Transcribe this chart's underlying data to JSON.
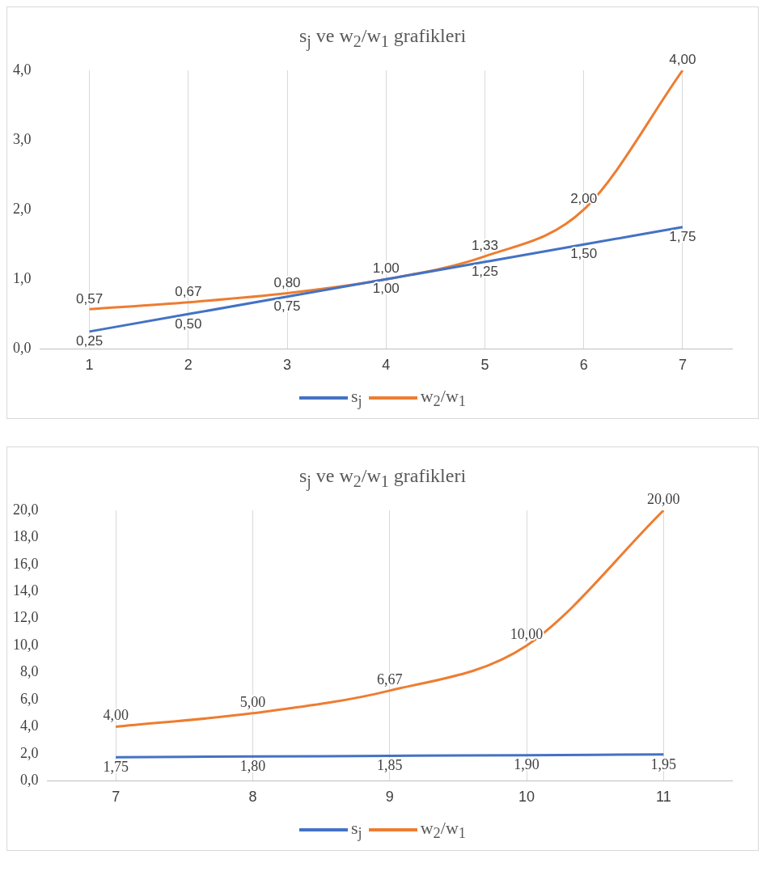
{
  "chart_data": [
    {
      "type": "line",
      "title": "s$_{j}$ ve w$_{2}$/w$_{1}$ grafikleri",
      "categories": [
        "1",
        "2",
        "3",
        "4",
        "5",
        "6",
        "7"
      ],
      "series": [
        {
          "name": "s$_{j}$",
          "color": "#4472c4",
          "values": [
            0.25,
            0.5,
            0.75,
            1.0,
            1.25,
            1.5,
            1.75
          ],
          "value_labels": [
            "0,25",
            "0,50",
            "0,75",
            "1,00",
            "1,25",
            "1,50",
            "1,75"
          ]
        },
        {
          "name": "w$_{2}$/w$_{1}$",
          "color": "#ed7d31",
          "values": [
            0.57,
            0.67,
            0.8,
            1.0,
            1.33,
            2.0,
            4.0
          ],
          "value_labels": [
            "0,57",
            "0,67",
            "0,80",
            "1,00",
            "1,33",
            "2,00",
            "4,00"
          ]
        }
      ],
      "ylim": [
        0,
        4
      ],
      "yticks": [
        {
          "value": 0,
          "label": "0,0"
        },
        {
          "value": 1,
          "label": "1,0"
        },
        {
          "value": 2,
          "label": "2,0"
        },
        {
          "value": 3,
          "label": "3,0"
        },
        {
          "value": 4,
          "label": "4,0"
        }
      ],
      "grid": "x",
      "legend": "bottom",
      "marker": "none",
      "line_style": "solid"
    },
    {
      "type": "line",
      "title": "s$_{j}$ ve w$_{2}$/w$_{1}$ grafikleri",
      "categories": [
        "7",
        "8",
        "9",
        "10",
        "11"
      ],
      "series": [
        {
          "name": "s$_{j}$",
          "color": "#4472c4",
          "values": [
            1.75,
            1.8,
            1.85,
            1.9,
            1.95
          ],
          "value_labels": [
            "1,75",
            "1,80",
            "1,85",
            "1,90",
            "1,95"
          ]
        },
        {
          "name": "w$_{2}$/w$_{1}$",
          "color": "#ed7d31",
          "values": [
            4.0,
            5.0,
            6.67,
            10.0,
            20.0
          ],
          "value_labels": [
            "4,00",
            "5,00",
            "6,67",
            "10,00",
            "20,00"
          ]
        }
      ],
      "ylim": [
        0,
        20
      ],
      "yticks": [
        {
          "value": 0,
          "label": "0,0"
        },
        {
          "value": 2,
          "label": "2,0"
        },
        {
          "value": 4,
          "label": "4,0"
        },
        {
          "value": 6,
          "label": "6,0"
        },
        {
          "value": 8,
          "label": "8,0"
        },
        {
          "value": 10,
          "label": "10,0"
        },
        {
          "value": 12,
          "label": "12,0"
        },
        {
          "value": 14,
          "label": "14,0"
        },
        {
          "value": 16,
          "label": "16,0"
        },
        {
          "value": 18,
          "label": "18,0"
        },
        {
          "value": 20,
          "label": "20,0"
        }
      ],
      "grid": "x",
      "legend": "bottom",
      "marker": "none",
      "line_style": "solid"
    }
  ]
}
